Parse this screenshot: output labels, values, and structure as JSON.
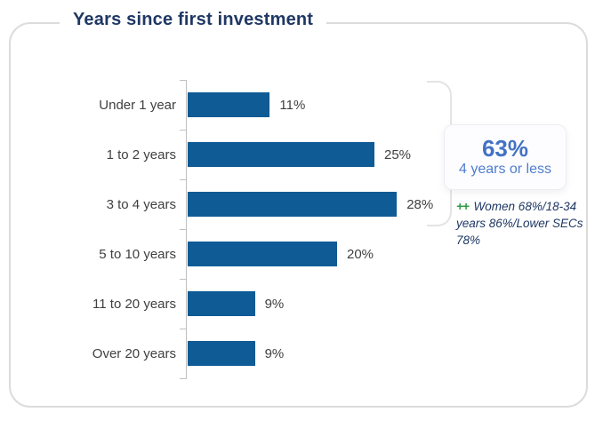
{
  "title": "Years since first investment",
  "chart_data": {
    "type": "bar",
    "orientation": "horizontal",
    "title": "Years since first investment",
    "categories": [
      "Under 1 year",
      "1 to 2 years",
      "3 to 4 years",
      "5 to 10 years",
      "11 to 20 years",
      "Over 20 years"
    ],
    "values": [
      11,
      25,
      28,
      20,
      9,
      9
    ],
    "value_labels": [
      "11%",
      "25%",
      "28%",
      "20%",
      "9%",
      "9%"
    ],
    "xlim": [
      0,
      30
    ],
    "grid": false,
    "bar_color": "#0f5b95",
    "axis_color": "#c0c0c0"
  },
  "callout": {
    "value": "63%",
    "label": "4 years or less",
    "value_color": "#4472c4"
  },
  "annotation": {
    "marker": "++",
    "marker_color": "#2e9b44",
    "text": "Women 68%/18-34 years 86%/Lower SECs 78%"
  },
  "colors": {
    "title_text": "#1f3864",
    "card_border": "#dcdcdc",
    "label_text": "#404040"
  }
}
